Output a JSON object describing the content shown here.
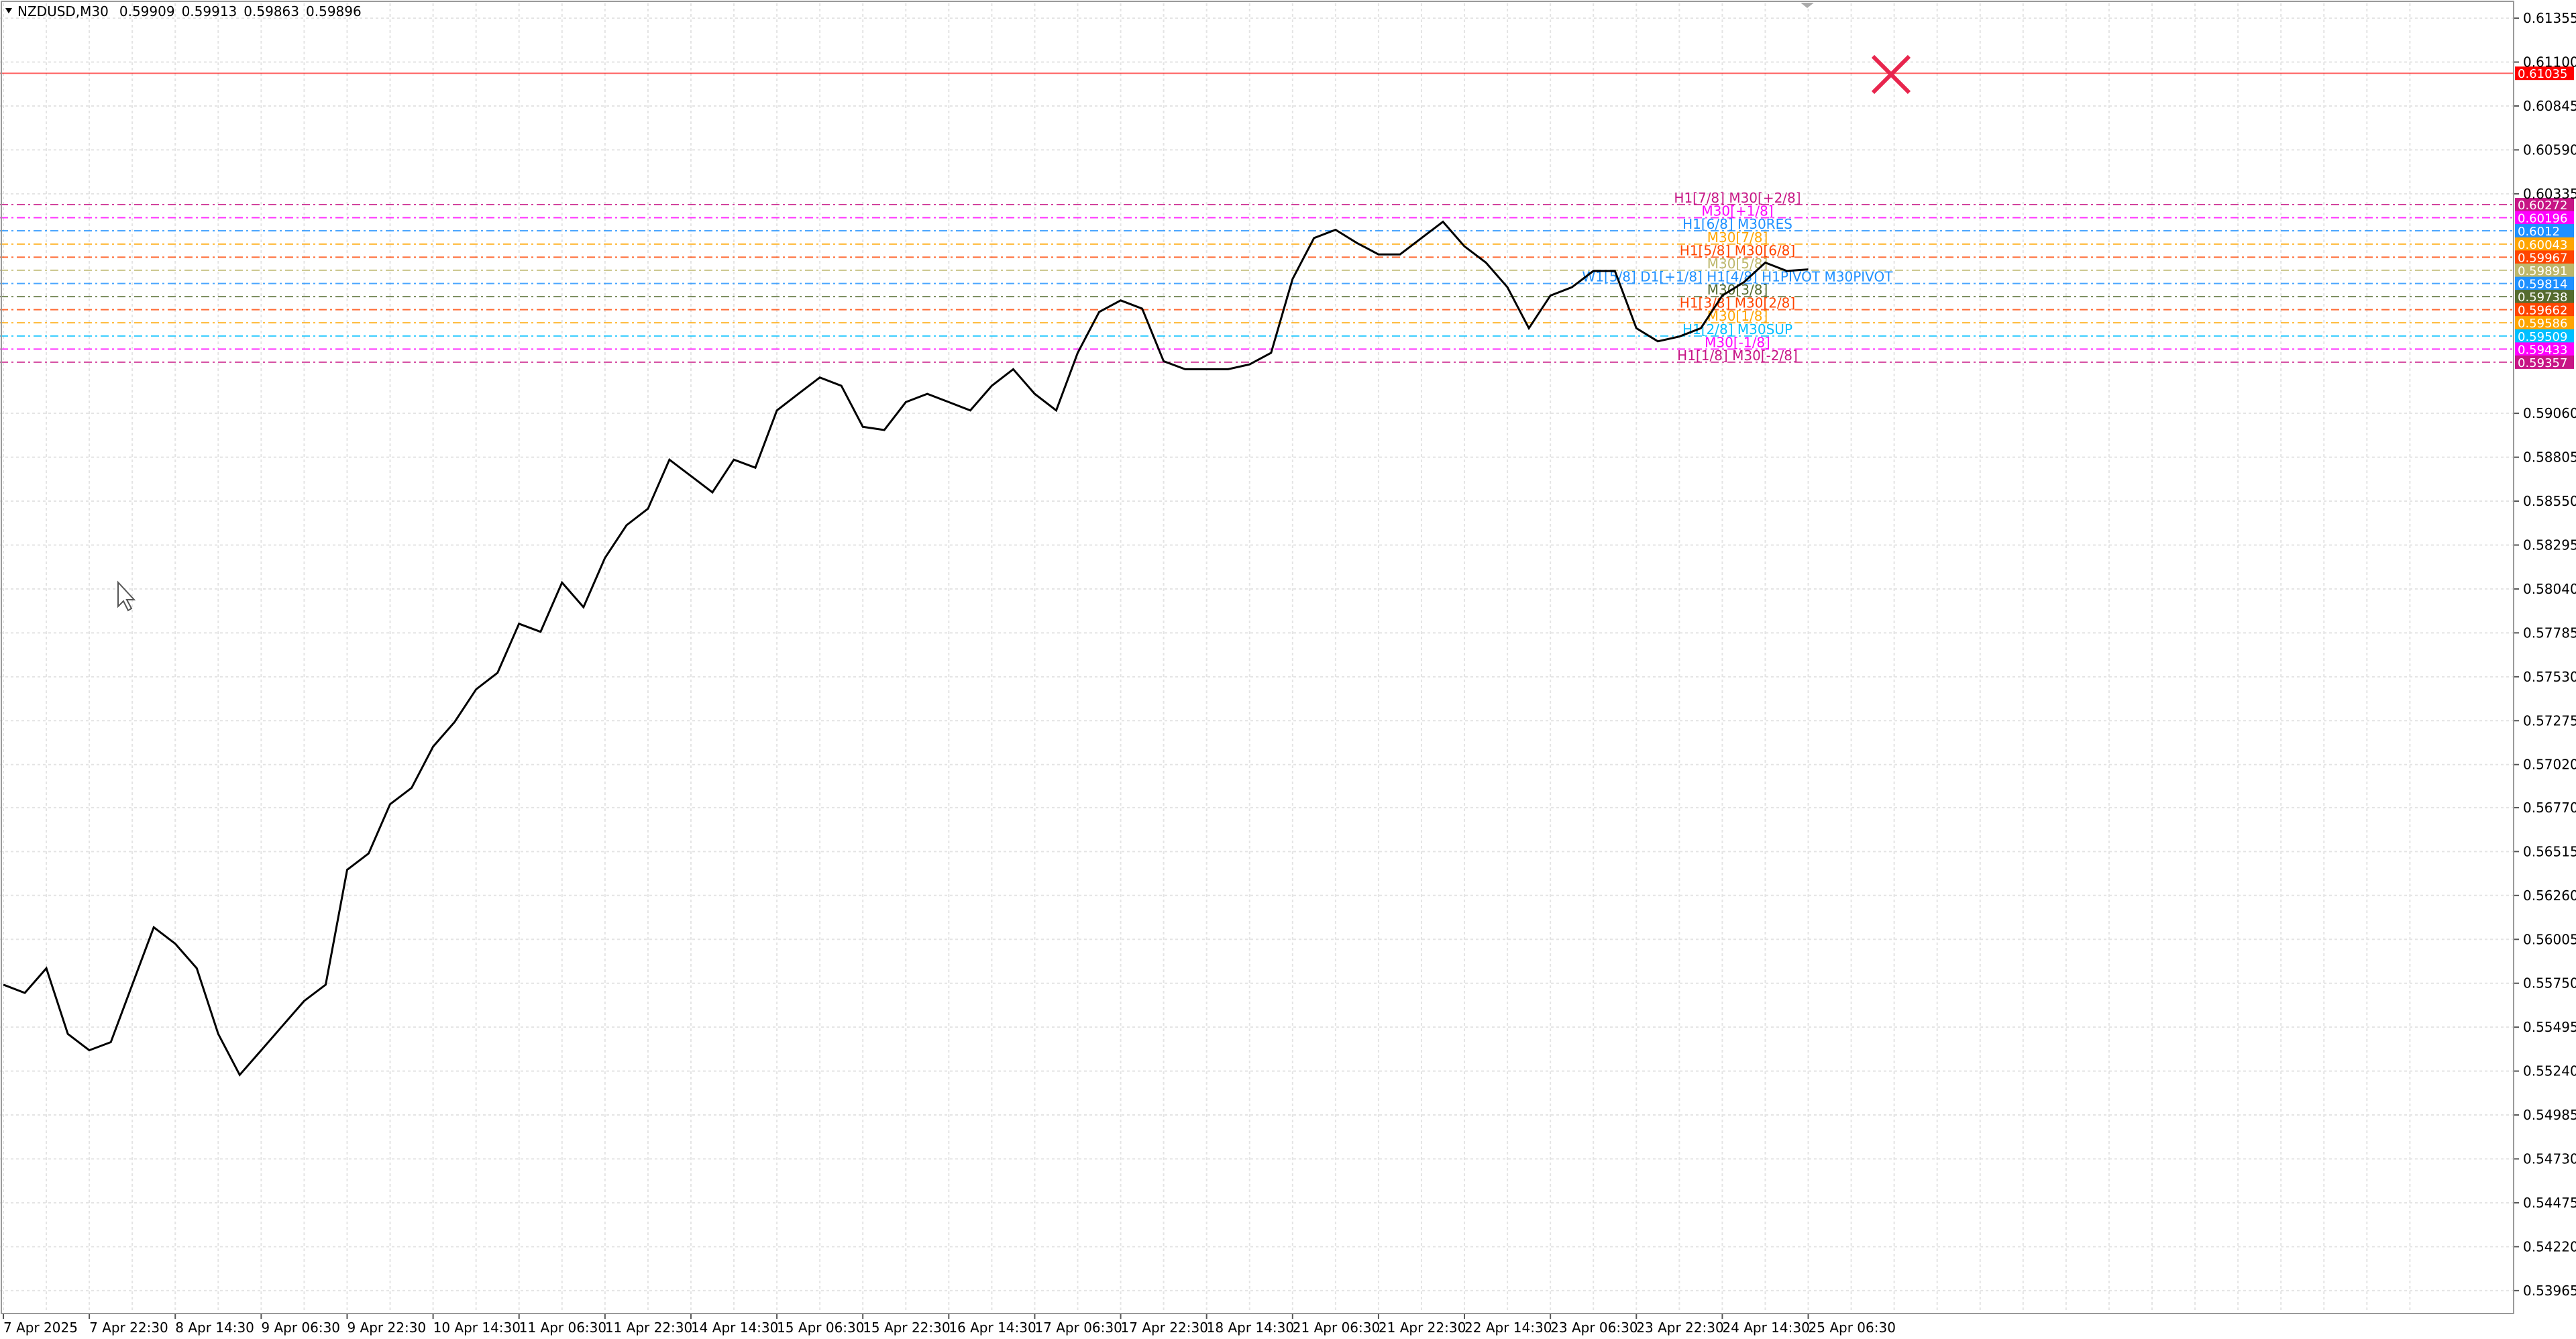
{
  "chart_data": {
    "type": "line",
    "title": "NZDUSD,M30",
    "ohlc": [
      0.59909,
      0.59913,
      0.59863,
      0.59896
    ],
    "color": "#000000",
    "grid": true,
    "categories": [
      "7 Apr 2025",
      null,
      null,
      null,
      "7 Apr 22:30",
      null,
      null,
      null,
      "8 Apr 14:30",
      null,
      null,
      null,
      "9 Apr 06:30",
      null,
      null,
      null,
      "9 Apr 22:30",
      null,
      null,
      null,
      "10 Apr 14:30",
      null,
      null,
      null,
      "11 Apr 06:30",
      null,
      null,
      null,
      "11 Apr 22:30",
      null,
      null,
      null,
      "14 Apr 14:30",
      null,
      null,
      null,
      "15 Apr 06:30",
      null,
      null,
      null,
      "15 Apr 22:30",
      null,
      null,
      null,
      "16 Apr 14:30",
      null,
      null,
      null,
      "17 Apr 06:30",
      null,
      null,
      null,
      "17 Apr 22:30",
      null,
      null,
      null,
      "18 Apr 14:30",
      null,
      null,
      null,
      "21 Apr 06:30",
      null,
      null,
      null,
      "21 Apr 22:30",
      null,
      null,
      null,
      "22 Apr 14:30",
      null,
      null,
      null,
      "23 Apr 06:30",
      null,
      null,
      null,
      "23 Apr 22:30",
      null,
      null,
      null,
      "24 Apr 14:30",
      null,
      null,
      null,
      "25 Apr 06:30"
    ],
    "values": [
      0.55742,
      0.55694,
      0.55837,
      0.55456,
      0.55361,
      0.55408,
      0.55742,
      0.56075,
      0.5598,
      0.55837,
      0.55456,
      0.55218,
      0.55361,
      0.55504,
      0.55647,
      0.55742,
      0.56409,
      0.56504,
      0.5679,
      0.56885,
      0.57124,
      0.57267,
      0.57457,
      0.57553,
      0.57838,
      0.57791,
      0.58077,
      0.57934,
      0.5822,
      0.5841,
      0.58506,
      0.58791,
      0.58696,
      0.58601,
      0.58791,
      0.58744,
      0.59077,
      0.59173,
      0.59268,
      0.5922,
      0.58982,
      0.58963,
      0.59125,
      0.59173,
      0.59125,
      0.59077,
      0.5922,
      0.59316,
      0.59173,
      0.59077,
      0.59411,
      0.59649,
      0.59716,
      0.59668,
      0.59363,
      0.59316,
      0.59316,
      0.59316,
      0.59344,
      0.59411,
      0.5984,
      0.60078,
      0.60126,
      0.60049,
      0.59983,
      0.59983,
      0.60078,
      0.60173,
      0.6003,
      0.59935,
      0.59792,
      0.59554,
      0.59744,
      0.59792,
      0.59887,
      0.59887,
      0.59554,
      0.59478,
      0.59506,
      0.59554,
      0.59744,
      0.59821,
      0.59935,
      0.59887,
      0.59896
    ],
    "ylim": [
      0.53832,
      0.61441
    ],
    "yticks": [
      0.61355,
      {
        "value": 0.611,
        "label": "0.61100"
      },
      0.60845,
      {
        "value": 0.6059,
        "label": "0.60590"
      },
      0.60335,
      {
        "value": 0.5906,
        "label": "0.59060"
      },
      0.58805,
      {
        "value": 0.5855,
        "label": "0.58550"
      },
      0.58295,
      {
        "value": 0.5804,
        "label": "0.58040"
      },
      0.57785,
      {
        "value": 0.5753,
        "label": "0.57530"
      },
      0.57275,
      {
        "value": 0.5702,
        "label": "0.57020"
      },
      {
        "value": 0.5677,
        "label": "0.56770"
      },
      0.56515,
      {
        "value": 0.5626,
        "label": "0.56260"
      },
      0.56005,
      {
        "value": 0.5575,
        "label": "0.55750"
      },
      0.55495,
      {
        "value": 0.5524,
        "label": "0.55240"
      },
      0.54985,
      {
        "value": 0.5473,
        "label": "0.54730"
      },
      0.54475,
      {
        "value": 0.5422,
        "label": "0.54220"
      },
      0.53965
    ],
    "levels": [
      {
        "value": 0.61035,
        "color": "#ff0000"
      },
      {
        "value": 0.60272,
        "label": "H1[7/8] M30[+2/8]",
        "color": "#c71585"
      },
      {
        "value": 0.60196,
        "label": "M30[+1/8]",
        "color": "#ff00ff"
      },
      {
        "value": 0.6012,
        "label": "H1[6/8] M30RES",
        "color": "#1e90ff"
      },
      {
        "value": 0.60043,
        "label": "M30[7/8]",
        "color": "#ffa500"
      },
      {
        "value": 0.59967,
        "label": "H1[5/8] M30[6/8]",
        "color": "#ff4500"
      },
      {
        "value": 0.59891,
        "label": "M30[5/8]",
        "color": "#bdb76b"
      },
      {
        "value": 0.59814,
        "label": "W1[5/8] D1[+1/8] H1[4/8] H1PIVOT M30PIVOT",
        "color": "#1e90ff"
      },
      {
        "value": 0.59738,
        "label": "M30[3/8]",
        "color": "#556b2f"
      },
      {
        "value": 0.59662,
        "label": "H1[3/8] M30[2/8]",
        "color": "#ff4500"
      },
      {
        "value": 0.59586,
        "label": "M30[1/8]",
        "color": "#ffa500"
      },
      {
        "value": 0.59509,
        "label": "H1[2/8] M30SUP",
        "color": "#00bfff"
      },
      {
        "value": 0.59433,
        "label": "M30[-1/8]",
        "color": "#ff00ff"
      },
      {
        "value": 0.59357,
        "label": "H1[1/8] M30[-2/8]",
        "color": "#c71585"
      }
    ]
  }
}
